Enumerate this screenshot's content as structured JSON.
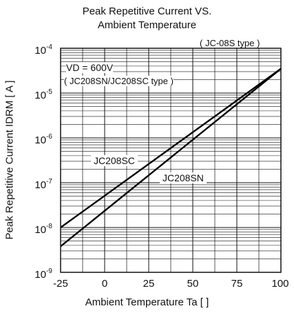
{
  "chart_data": {
    "type": "line",
    "title_line1": "Peak Repetitive Current VS.",
    "title_line2": "Ambient Temperature",
    "xlabel": "Ambient Temperature Ta [  ]",
    "ylabel": "Peak Repetitive Current IDRM [ A ]",
    "xlim": [
      -25,
      100
    ],
    "ylog": true,
    "ylim": [
      1e-09,
      0.0001
    ],
    "x_ticks": [
      "-25",
      "0",
      "25",
      "50",
      "75",
      "100"
    ],
    "y_ticks": [
      {
        "base": "10",
        "exp": "-4"
      },
      {
        "base": "10",
        "exp": "-5"
      },
      {
        "base": "10",
        "exp": "-6"
      },
      {
        "base": "10",
        "exp": "-7"
      },
      {
        "base": "10",
        "exp": "-8"
      },
      {
        "base": "10",
        "exp": "-9"
      }
    ],
    "grid": true,
    "type_label": "( JC-08S type )",
    "condition_line1": "VD = 600V",
    "condition_line2": "( JC208SN/JC208SC type )",
    "series": [
      {
        "name": "JC208SC",
        "x": [
          -25,
          100
        ],
        "y": [
          1e-08,
          3.5e-05
        ]
      },
      {
        "name": "JC208SN",
        "x": [
          -25,
          100
        ],
        "y": [
          3.8e-09,
          3.5e-05
        ]
      }
    ]
  }
}
